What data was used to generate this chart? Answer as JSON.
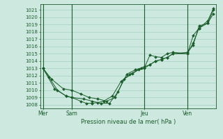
{
  "xlabel": "Pression niveau de la mer( hPa )",
  "background_color": "#cce8df",
  "grid_color": "#99ccbb",
  "line_color": "#1a5c2a",
  "ylim": [
    1007.5,
    1021.8
  ],
  "yticks": [
    1008,
    1009,
    1010,
    1011,
    1012,
    1013,
    1014,
    1015,
    1016,
    1017,
    1018,
    1019,
    1020,
    1021
  ],
  "day_labels": [
    "Mer",
    "Sam",
    "Jeu",
    "Ven"
  ],
  "day_positions": [
    0,
    10,
    35,
    50
  ],
  "xlim": [
    -1,
    60
  ],
  "series": [
    {
      "x": [
        0,
        2,
        5,
        8,
        10,
        13,
        15,
        17,
        19,
        21,
        24,
        27,
        30,
        33,
        35,
        37,
        39,
        41,
        43,
        45,
        50,
        52,
        54,
        57,
        59
      ],
      "y": [
        1013,
        1011.8,
        1010.0,
        1009.2,
        1009.0,
        1008.5,
        1008.2,
        1008.2,
        1008.3,
        1008.5,
        1009.2,
        1011.2,
        1012.2,
        1012.8,
        1013.0,
        1014.8,
        1014.6,
        1014.5,
        1015.0,
        1015.2,
        1015.0,
        1017.5,
        1018.5,
        1019.5,
        1021.2
      ]
    },
    {
      "x": [
        0,
        3,
        7,
        10,
        13,
        16,
        19,
        22,
        25,
        28,
        31,
        34,
        35,
        37,
        39,
        41,
        43,
        45,
        50,
        52,
        54,
        57,
        59
      ],
      "y": [
        1013,
        1011.5,
        1010.2,
        1010.0,
        1009.5,
        1009.0,
        1008.8,
        1008.5,
        1009.0,
        1011.5,
        1012.3,
        1013.0,
        1013.0,
        1013.5,
        1014.0,
        1014.2,
        1014.5,
        1015.0,
        1015.2,
        1016.2,
        1018.8,
        1019.2,
        1020.5
      ]
    },
    {
      "x": [
        0,
        4,
        8,
        10,
        14,
        17,
        20,
        23,
        26,
        29,
        32,
        35,
        37,
        39,
        41,
        43,
        45,
        50,
        52,
        54,
        57,
        59
      ],
      "y": [
        1013,
        1010.2,
        1009.2,
        1009.0,
        1008.8,
        1008.5,
        1008.2,
        1008.2,
        1009.8,
        1012.2,
        1012.8,
        1013.2,
        1013.5,
        1014.0,
        1014.2,
        1014.5,
        1015.0,
        1015.0,
        1016.5,
        1018.5,
        1019.2,
        1021.0
      ]
    }
  ]
}
